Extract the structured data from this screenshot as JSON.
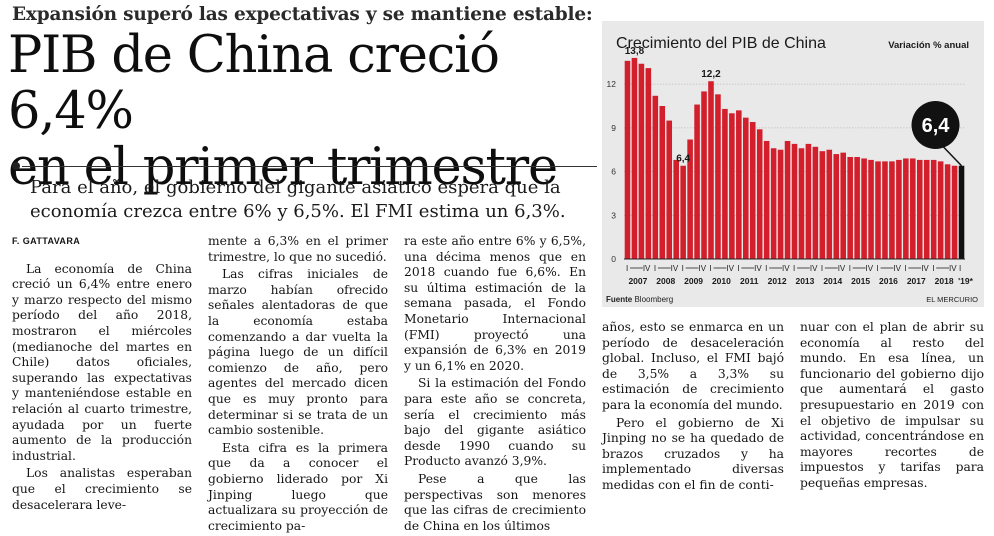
{
  "article": {
    "kicker": "Expansión superó las expectativas y se mantiene estable:",
    "headline_line1": "PIB de China creció 6,4%",
    "headline_line2": "en el primer trimestre",
    "deck_line1": "Para el año, el gobierno del gigante asiático espera que la",
    "deck_line2": "economía crezca entre 6% y 6,5%. El FMI estima un 6,3%.",
    "byline": "F. GATTAVARA",
    "col1": [
      "La economía de China creció un 6,4% entre enero y marzo respecto del mismo período del año 2018, mostraron el miércoles (medianoche del martes en Chile) datos oficiales, superando las expectativas y manteniéndose estable en relación al cuarto trimestre, ayudada por un fuerte aumento de la producción industrial.",
      "Los analistas esperaban que el crecimiento se desacelerara leve-"
    ],
    "col2": [
      "mente a 6,3% en el primer trimestre, lo que no sucedió.",
      "Las cifras iniciales de marzo habían ofrecido señales alentadoras de que la economía estaba comenzando a dar vuelta la página luego de un difícil comienzo de año, pero agentes del mercado dicen que es muy pronto para determinar si se trata de un cambio sostenible.",
      "Esta cifra es la primera que da a conocer el gobierno liderado por Xi Jinping luego que actualizara su proyección de crecimiento pa-"
    ],
    "col3": [
      "ra este año entre 6% y 6,5%, una décima menos que en 2018 cuando fue 6,6%. En su última estimación de la semana pasada, el Fondo Monetario Internacional (FMI) proyectó una expansión de 6,3% en 2019 y un 6,1% en 2020.",
      "Si la estimación del Fondo para este año se concreta, sería el crecimiento más bajo del gigante asiático desde 1990 cuando su Producto avanzó 3,9%.",
      "Pese a que las perspectivas son menores que las cifras de crecimiento de China en los últimos"
    ],
    "col4": [
      "años, esto se enmarca en un período de desaceleración global. Incluso, el FMI bajó de 3,5% a 3,3% su estimación de crecimiento para la economía del mundo.",
      "Pero el gobierno de Xi Jinping no se ha quedado de brazos cruzados y ha implementado diversas medidas con el fin de conti-"
    ],
    "col5": [
      "nuar con el plan de abrir su economía al resto del mundo. En esa línea, un funcionario del gobierno dijo que aumentará el gasto presupuestario en 2019 con el objetivo de impulsar su actividad, concentrándose en mayores recortes de impuestos y tarifas para pequeñas empresas."
    ]
  },
  "chart_data": {
    "type": "bar",
    "title": "Crecimiento del PIB de China",
    "subtitle": "Variación % anual",
    "source_label": "Fuente",
    "source": "Bloomberg",
    "credit": "EL MERCURIO",
    "ylim": [
      0,
      14
    ],
    "yticks": [
      "0",
      "3",
      "6",
      "9",
      "12"
    ],
    "quarter_marks": [
      "I",
      "IV"
    ],
    "year_labels": [
      "2007",
      "2008",
      "2009",
      "2010",
      "2011",
      "2012",
      "2013",
      "2014",
      "2015",
      "2016",
      "2017",
      "2018",
      "'19*"
    ],
    "callout": "6,4",
    "annotations": [
      "13,8",
      "6,4",
      "12,2"
    ],
    "bar_color": "#d21f2b",
    "highlight_color": "#111111",
    "values": [
      13.6,
      13.8,
      13.4,
      13.1,
      11.2,
      10.5,
      9.5,
      6.8,
      6.4,
      8.2,
      10.6,
      11.5,
      12.2,
      11.3,
      10.3,
      10.0,
      10.2,
      9.7,
      9.4,
      8.9,
      8.1,
      7.6,
      7.5,
      8.1,
      7.9,
      7.6,
      7.9,
      7.7,
      7.4,
      7.5,
      7.2,
      7.3,
      7.0,
      7.0,
      6.9,
      6.8,
      6.7,
      6.7,
      6.7,
      6.8,
      6.9,
      6.9,
      6.8,
      6.8,
      6.8,
      6.7,
      6.5,
      6.4,
      6.4
    ]
  }
}
